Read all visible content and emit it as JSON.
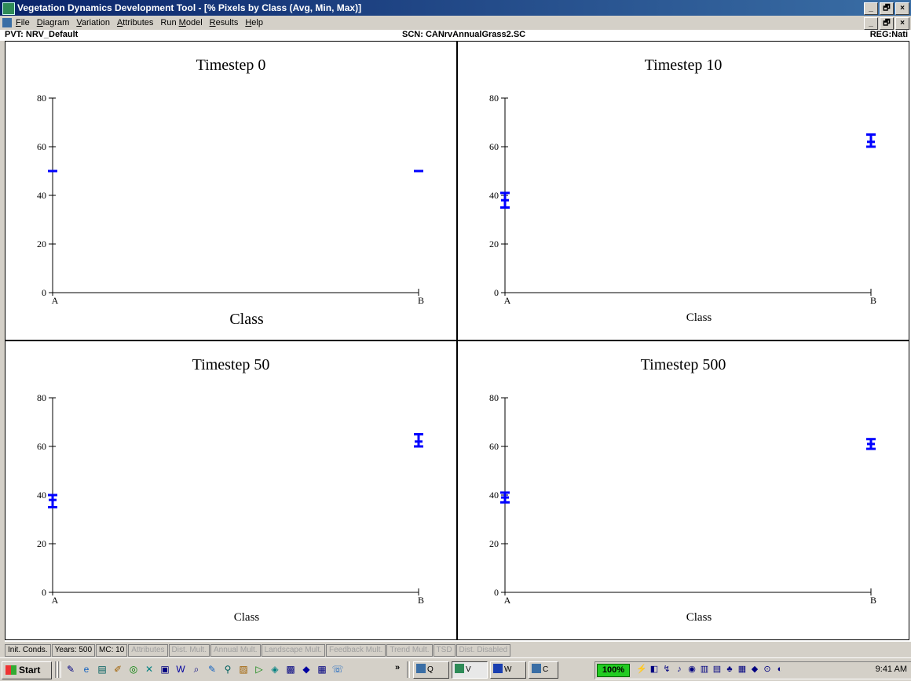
{
  "window": {
    "title": "Vegetation Dynamics Development Tool - [% Pixels by Class (Avg, Min, Max)]",
    "caption_buttons": [
      "_",
      "🗗",
      "×"
    ]
  },
  "menu": [
    "File",
    "Diagram",
    "Variation",
    "Attributes",
    "Run Model",
    "Results",
    "Help"
  ],
  "menu_mnemonics": [
    "F",
    "D",
    "V",
    "A",
    "M",
    "R",
    "H"
  ],
  "info": {
    "pvt": "PVT: NRV_Default",
    "scn": "SCN: CANrvAnnualGrass2.SC",
    "reg": "REG:Nati"
  },
  "chart_data": [
    {
      "type": "scatter",
      "title": "Timestep 0",
      "xlabel": "Class",
      "categories": [
        "A",
        "B"
      ],
      "ylim": [
        0,
        80
      ],
      "yticks": [
        0,
        20,
        40,
        60,
        80
      ],
      "color": "#0000ff",
      "series": [
        {
          "avg": [
            50,
            50
          ],
          "min": [
            50,
            50
          ],
          "max": [
            50,
            50
          ]
        }
      ]
    },
    {
      "type": "scatter",
      "title": "Timestep 10",
      "xlabel": "Class",
      "categories": [
        "A",
        "B"
      ],
      "ylim": [
        0,
        80
      ],
      "yticks": [
        0,
        20,
        40,
        60,
        80
      ],
      "color": "#0000ff",
      "series": [
        {
          "avg": [
            38,
            62
          ],
          "min": [
            35,
            60
          ],
          "max": [
            41,
            65
          ]
        }
      ]
    },
    {
      "type": "scatter",
      "title": "Timestep 50",
      "xlabel": "Class",
      "categories": [
        "A",
        "B"
      ],
      "ylim": [
        0,
        80
      ],
      "yticks": [
        0,
        20,
        40,
        60,
        80
      ],
      "color": "#0000ff",
      "series": [
        {
          "avg": [
            38,
            62
          ],
          "min": [
            35,
            60
          ],
          "max": [
            40,
            65
          ]
        }
      ]
    },
    {
      "type": "scatter",
      "title": "Timestep 500",
      "xlabel": "Class",
      "categories": [
        "A",
        "B"
      ],
      "ylim": [
        0,
        80
      ],
      "yticks": [
        0,
        20,
        40,
        60,
        80
      ],
      "color": "#0000ff",
      "series": [
        {
          "avg": [
            39,
            61
          ],
          "min": [
            37,
            59
          ],
          "max": [
            41,
            63
          ]
        }
      ]
    }
  ],
  "status_tabs": [
    {
      "label": "Init. Conds.",
      "enabled": true
    },
    {
      "label": "Years: 500",
      "enabled": true
    },
    {
      "label": "MC: 10",
      "enabled": true
    },
    {
      "label": "Attributes",
      "enabled": false
    },
    {
      "label": "Dist. Mult.",
      "enabled": false
    },
    {
      "label": "Annual Mult.",
      "enabled": false
    },
    {
      "label": "Landscape Mult.",
      "enabled": false
    },
    {
      "label": "Feedback Mult.",
      "enabled": false
    },
    {
      "label": "Trend Mult.",
      "enabled": false
    },
    {
      "label": "TSD",
      "enabled": false
    },
    {
      "label": "Dist. Disabled",
      "enabled": false
    }
  ],
  "taskbar": {
    "start": "Start",
    "quick_launch": [
      "✎",
      "e",
      "▤",
      "✐",
      "◎",
      "✕",
      "▣",
      "W",
      "⌕",
      "✎",
      "⚲",
      "▨",
      "▷",
      "◈",
      "▩",
      "◆",
      "▦",
      "☏"
    ],
    "chevron": "»",
    "tasks": [
      {
        "label": "Q",
        "icon": "window-icon"
      },
      {
        "label": "V",
        "icon": "vddt-icon"
      },
      {
        "label": "W",
        "icon": "word-icon"
      },
      {
        "label": "C",
        "icon": "window-icon"
      }
    ],
    "zoom": "100%",
    "tray_icons": [
      "⚡",
      "◧",
      "↯",
      "♪",
      "◉",
      "▥",
      "▤",
      "♣",
      "▦",
      "◆",
      "⊙",
      "◐"
    ],
    "clock": "9:41 AM"
  }
}
